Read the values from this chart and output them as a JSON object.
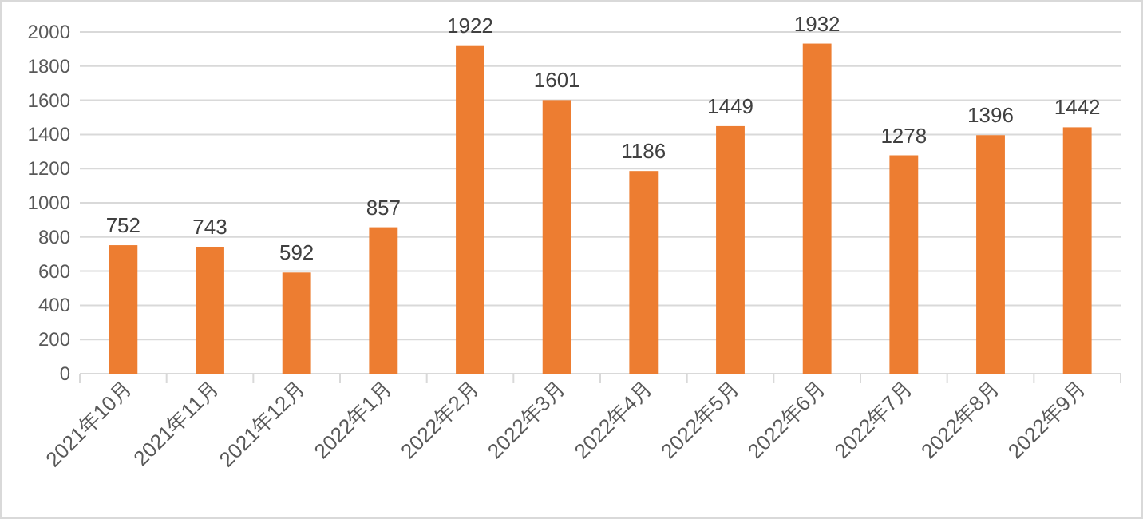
{
  "chart_data": {
    "type": "bar",
    "categories": [
      "2021年10月",
      "2021年11月",
      "2021年12月",
      "2022年1月",
      "2022年2月",
      "2022年3月",
      "2022年4月",
      "2022年5月",
      "2022年6月",
      "2022年7月",
      "2022年8月",
      "2022年9月"
    ],
    "values": [
      752,
      743,
      592,
      857,
      1922,
      1601,
      1186,
      1449,
      1932,
      1278,
      1396,
      1442
    ],
    "color": "#ed7d31",
    "ylim": [
      0,
      2000
    ],
    "yticks": [
      0,
      200,
      400,
      600,
      800,
      1000,
      1200,
      1400,
      1600,
      1800,
      2000
    ],
    "grid": "y",
    "data_labels": true
  }
}
